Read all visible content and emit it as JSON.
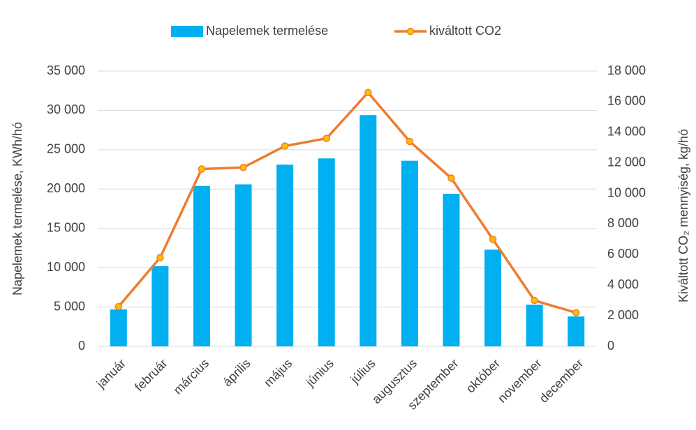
{
  "chart_data": {
    "type": "bar_line",
    "categories": [
      "január",
      "február",
      "március",
      "április",
      "május",
      "június",
      "július",
      "augusztus",
      "szeptember",
      "október",
      "november",
      "december"
    ],
    "series": [
      {
        "name": "Napelemek termelése",
        "type": "bar",
        "color": "#00b0f0",
        "values": [
          4700,
          10200,
          20400,
          20600,
          23100,
          23900,
          29400,
          23600,
          19400,
          12300,
          5300,
          3800
        ]
      },
      {
        "name": "kiváltott CO2",
        "type": "line",
        "axis": "y2",
        "color": "#ed7d31",
        "marker_color": "#ffc000",
        "values": [
          2600,
          5800,
          11600,
          11700,
          13100,
          13600,
          16600,
          13400,
          11000,
          7000,
          3000,
          2200
        ]
      }
    ],
    "y_label": "Napelemek  termelése, KWh/hó",
    "y2_label": "Kiváltott CO₂ mennyiség, kg/hó",
    "ylim": [
      0,
      35000
    ],
    "yticks": [
      0,
      {
        "value": 5000,
        "label": "5 000"
      },
      {
        "value": 10000,
        "label": "10 000"
      },
      {
        "value": 15000,
        "label": "15 000"
      },
      {
        "value": 20000,
        "label": "20 000"
      },
      {
        "value": 25000,
        "label": "25 000"
      },
      {
        "value": 30000,
        "label": "30 000"
      },
      {
        "value": 35000,
        "label": "35 000"
      }
    ],
    "y2lim": [
      0,
      18000
    ],
    "y2ticks": [
      0,
      {
        "value": 2000,
        "label": "2 000"
      },
      {
        "value": 4000,
        "label": "4 000"
      },
      {
        "value": 6000,
        "label": "6 000"
      },
      {
        "value": 8000,
        "label": "8 000"
      },
      {
        "value": 10000,
        "label": "10 000"
      },
      {
        "value": 12000,
        "label": "12 000"
      },
      {
        "value": 14000,
        "label": "14 000"
      },
      {
        "value": 16000,
        "label": "16 000"
      },
      {
        "value": 18000,
        "label": "18 000"
      }
    ],
    "grid": true,
    "legend": "top"
  }
}
